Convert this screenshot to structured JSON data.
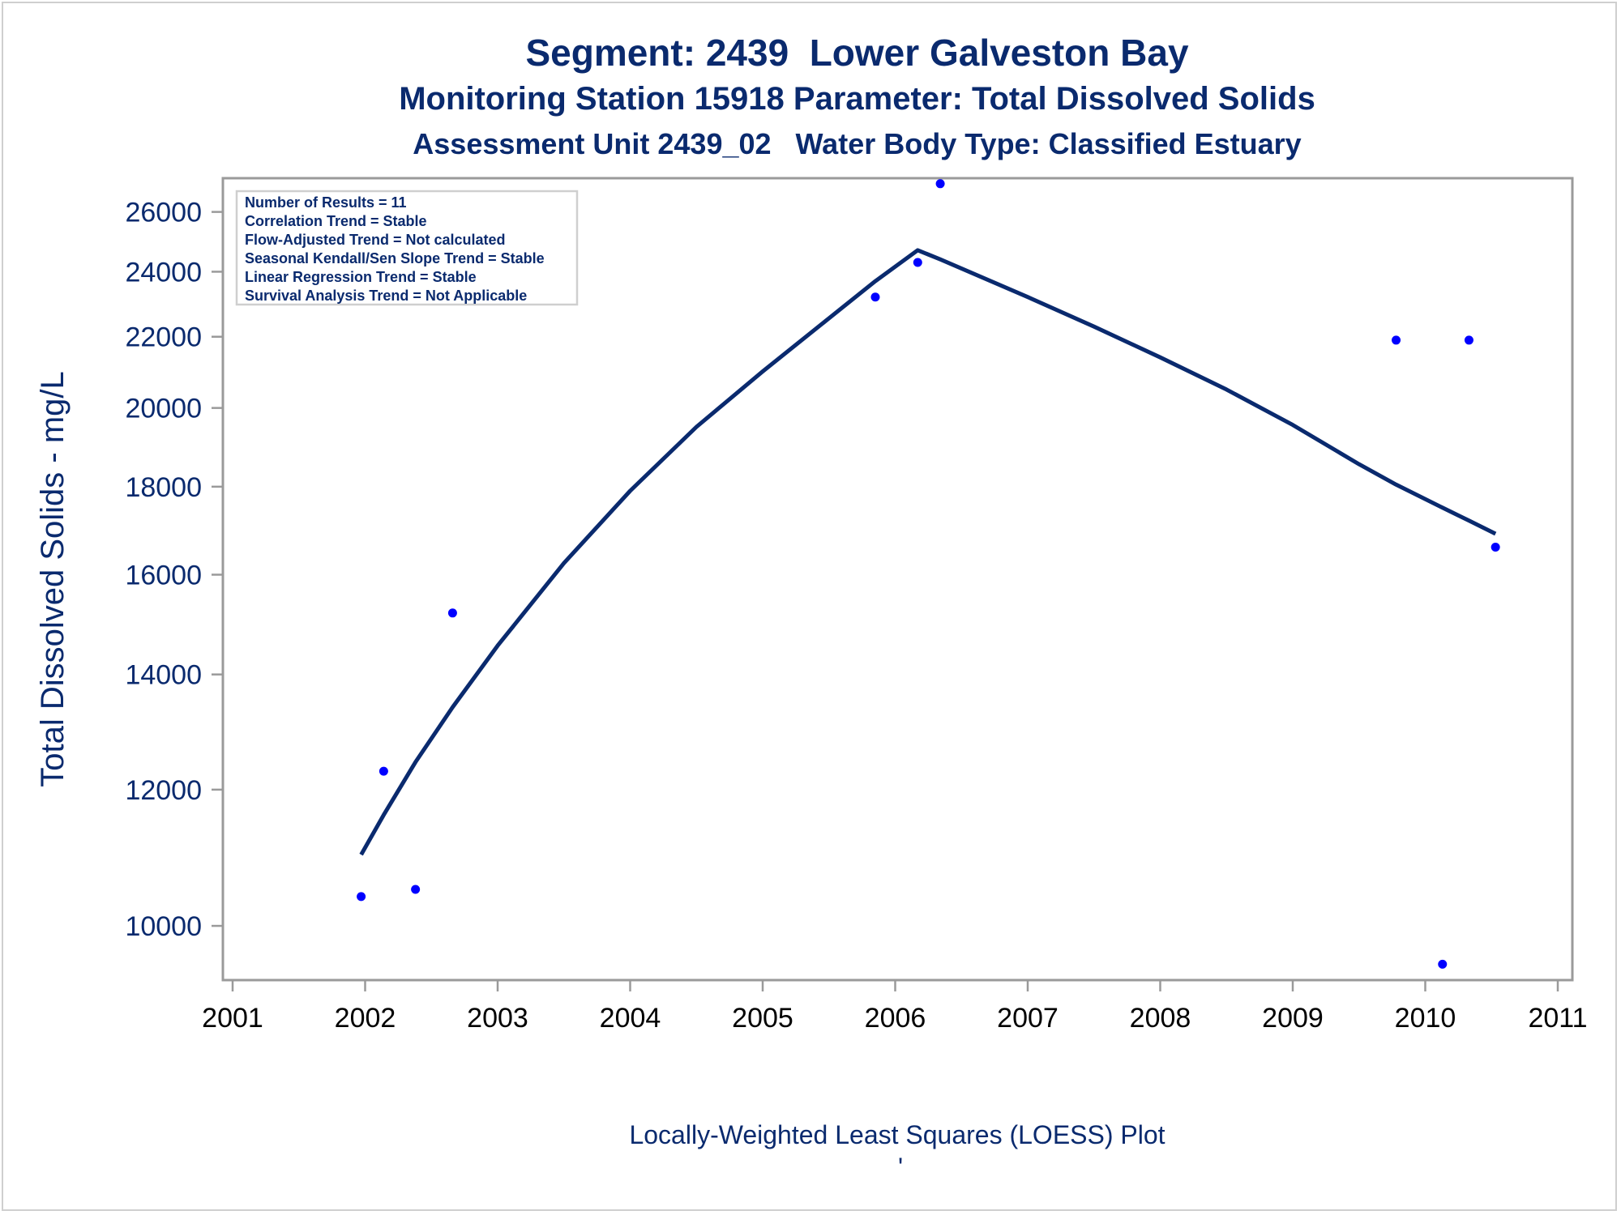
{
  "chart_data": {
    "type": "scatter",
    "title": "Segment: 2439  Lower Galveston Bay",
    "subtitle": "Monitoring Station 15918 Parameter: Total Dissolved Solids",
    "subtitle2": "Assessment Unit 2439_02   Water Body Type: Classified Estuary",
    "xlabel": "",
    "ylabel": "Total Dissolved Solids - mg/L",
    "footnote": "Locally-Weighted Least Squares (LOESS) Plot",
    "footnote_mark": "'",
    "y_scale": "log",
    "xlim": [
      2001,
      2011
    ],
    "ylim": [
      9300,
      27200
    ],
    "x_ticks": [
      2001,
      2002,
      2003,
      2004,
      2005,
      2006,
      2007,
      2008,
      2009,
      2010,
      2011
    ],
    "y_ticks": [
      10000,
      12000,
      14000,
      16000,
      18000,
      20000,
      22000,
      24000,
      26000
    ],
    "grid": false,
    "legend": "none",
    "annotation_box": {
      "placement": "top-left",
      "lines": [
        "Number of Results = 11",
        "Correlation Trend = Stable",
        "Flow-Adjusted Trend = Not calculated",
        "Seasonal Kendall/Sen Slope Trend = Stable",
        "Linear Regression Trend = Stable",
        "Survival Analysis Trend = Not Applicable"
      ]
    },
    "series": [
      {
        "kind": "points",
        "color": "#0000ff",
        "points": [
          {
            "x": 2001.97,
            "y": 10400
          },
          {
            "x": 2002.14,
            "y": 12300
          },
          {
            "x": 2002.38,
            "y": 10500
          },
          {
            "x": 2002.66,
            "y": 15200
          },
          {
            "x": 2005.85,
            "y": 23200
          },
          {
            "x": 2006.17,
            "y": 24300
          },
          {
            "x": 2006.34,
            "y": 27000
          },
          {
            "x": 2009.78,
            "y": 21900
          },
          {
            "x": 2010.13,
            "y": 9500
          },
          {
            "x": 2010.33,
            "y": 21900
          },
          {
            "x": 2010.53,
            "y": 16600
          }
        ]
      },
      {
        "kind": "loess-line",
        "color": "#0a2a6e",
        "points": [
          {
            "x": 2001.97,
            "y": 11000
          },
          {
            "x": 2002.14,
            "y": 11600
          },
          {
            "x": 2002.38,
            "y": 12450
          },
          {
            "x": 2002.66,
            "y": 13400
          },
          {
            "x": 2003.0,
            "y": 14550
          },
          {
            "x": 2003.5,
            "y": 16250
          },
          {
            "x": 2004.0,
            "y": 17900
          },
          {
            "x": 2004.5,
            "y": 19500
          },
          {
            "x": 2005.0,
            "y": 21000
          },
          {
            "x": 2005.5,
            "y": 22550
          },
          {
            "x": 2005.85,
            "y": 23700
          },
          {
            "x": 2006.17,
            "y": 24700
          },
          {
            "x": 2006.34,
            "y": 24400
          },
          {
            "x": 2007.0,
            "y": 23200
          },
          {
            "x": 2007.5,
            "y": 22300
          },
          {
            "x": 2008.0,
            "y": 21400
          },
          {
            "x": 2008.5,
            "y": 20500
          },
          {
            "x": 2009.0,
            "y": 19550
          },
          {
            "x": 2009.5,
            "y": 18550
          },
          {
            "x": 2009.78,
            "y": 18050
          },
          {
            "x": 2010.13,
            "y": 17500
          },
          {
            "x": 2010.33,
            "y": 17200
          },
          {
            "x": 2010.53,
            "y": 16900
          }
        ]
      }
    ]
  }
}
